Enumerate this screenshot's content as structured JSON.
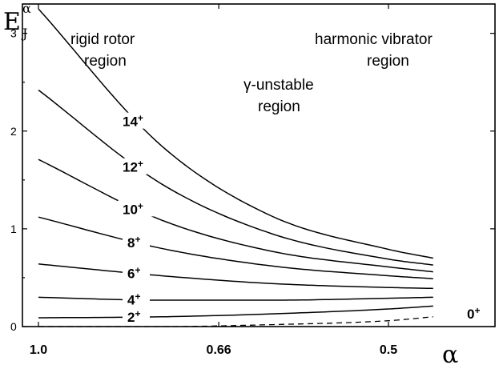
{
  "chart_data": {
    "type": "line",
    "xlabel": "α",
    "ylabel_main": "E",
    "ylabel_sup": "α",
    "ylabel_sub": "J",
    "xlim": [
      1.0,
      0.45
    ],
    "ylim": [
      0,
      3.3
    ],
    "x_ticks": [
      {
        "value": 1.0,
        "label": "1.0"
      },
      {
        "value": 0.66,
        "label": "0.66"
      },
      {
        "value": 0.5,
        "label": "0.5"
      }
    ],
    "y_ticks": [
      {
        "value": 0,
        "label": "0"
      },
      {
        "value": 1,
        "label": "1"
      },
      {
        "value": 2,
        "label": "2"
      },
      {
        "value": 3,
        "label": "3"
      }
    ],
    "regions": [
      {
        "line1": "rigid rotor",
        "line2": "region"
      },
      {
        "line1": "γ-unstable",
        "line2": "region"
      },
      {
        "line1": "harmonic vibrator",
        "line2": "region"
      }
    ],
    "series": [
      {
        "name": "0+",
        "state": "0",
        "parity": "+",
        "dashed": true,
        "x": [
          1.0,
          0.74,
          0.6,
          0.5,
          0.47
        ],
        "y": [
          0.0,
          0.0,
          0.02,
          0.06,
          0.1
        ]
      },
      {
        "name": "2+",
        "state": "2",
        "parity": "+",
        "dashed": false,
        "x": [
          1.0,
          0.74,
          0.6,
          0.5,
          0.47
        ],
        "y": [
          0.09,
          0.1,
          0.13,
          0.18,
          0.21
        ]
      },
      {
        "name": "4+",
        "state": "4",
        "parity": "+",
        "dashed": false,
        "x": [
          1.0,
          0.74,
          0.6,
          0.5,
          0.47
        ],
        "y": [
          0.3,
          0.27,
          0.27,
          0.29,
          0.3
        ]
      },
      {
        "name": "6+",
        "state": "6",
        "parity": "+",
        "dashed": false,
        "x": [
          1.0,
          0.74,
          0.6,
          0.5,
          0.47
        ],
        "y": [
          0.64,
          0.52,
          0.44,
          0.4,
          0.39
        ]
      },
      {
        "name": "8+",
        "state": "8",
        "parity": "+",
        "dashed": false,
        "x": [
          1.0,
          0.74,
          0.6,
          0.5,
          0.47
        ],
        "y": [
          1.12,
          0.8,
          0.62,
          0.52,
          0.49
        ]
      },
      {
        "name": "10+",
        "state": "10",
        "parity": "+",
        "dashed": false,
        "x": [
          1.0,
          0.74,
          0.6,
          0.5,
          0.47
        ],
        "y": [
          1.71,
          1.09,
          0.77,
          0.61,
          0.56
        ]
      },
      {
        "name": "12+",
        "state": "12",
        "parity": "+",
        "dashed": false,
        "x": [
          1.0,
          0.74,
          0.6,
          0.5,
          0.47
        ],
        "y": [
          2.42,
          1.46,
          0.95,
          0.69,
          0.63
        ]
      },
      {
        "name": "14+",
        "state": "14",
        "parity": "+",
        "dashed": false,
        "x": [
          1.0,
          0.74,
          0.6,
          0.5,
          0.47
        ],
        "y": [
          3.25,
          1.85,
          1.13,
          0.79,
          0.7
        ]
      }
    ]
  }
}
